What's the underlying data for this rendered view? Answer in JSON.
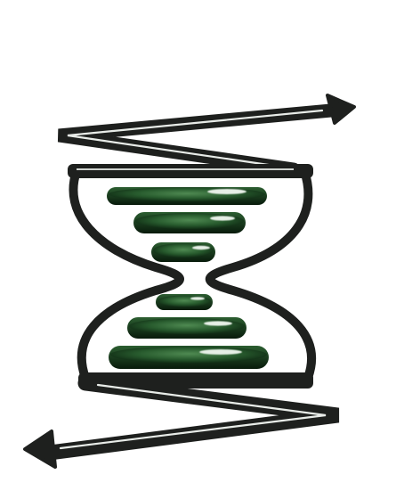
{
  "image": {
    "subject": "hourglass-with-zigzag-arrows",
    "colors": {
      "background": "#ffffff",
      "frame": "#1e201e",
      "frame_highlight": "#e8ece8",
      "disc_dark": "#0f2a14",
      "disc_mid": "#2f6a36",
      "disc_light": "#5f9a62",
      "glass_fill": "#ffffff"
    },
    "top_disc_count": 3,
    "bottom_disc_count": 3,
    "arrow_count": 2
  }
}
